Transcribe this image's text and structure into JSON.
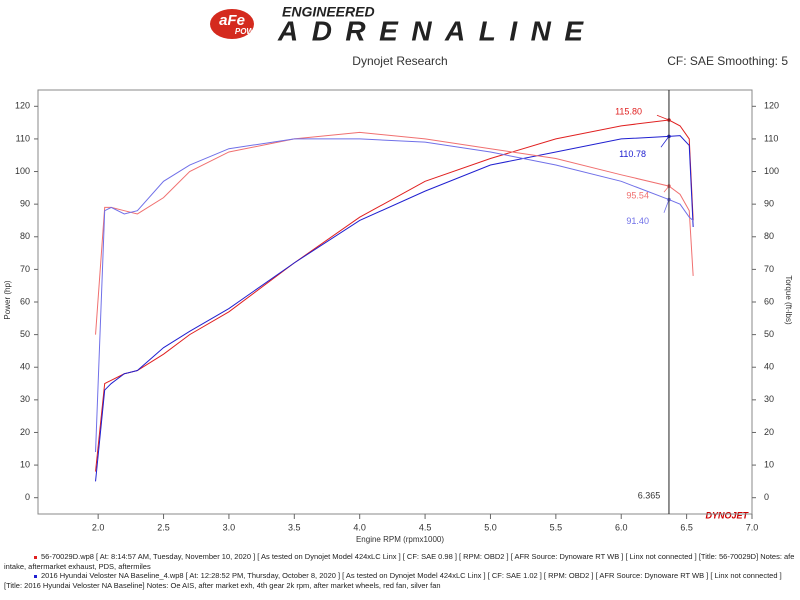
{
  "brand": {
    "logo": "aFe",
    "logo_sub": "POWER",
    "tagline": "ENGINEERED",
    "name": "ADRENALINE"
  },
  "chart_data": {
    "type": "line",
    "title": "Dynojet Research",
    "subtitle": "CF: SAE Smoothing: 5",
    "x_label": "Engine RPM (rpmx1000)",
    "y_label": "Power (hp)",
    "y2_label": "Torque (ft-lbs)",
    "watermark": "DYNOJET",
    "x": [
      1.98,
      2.05,
      2.1,
      2.2,
      2.3,
      2.5,
      2.7,
      3.0,
      3.5,
      4.0,
      4.5,
      5.0,
      5.5,
      6.0,
      6.365,
      6.45,
      6.52,
      6.55
    ],
    "series": [
      {
        "color": "#e02020",
        "values": [
          8,
          35,
          36,
          38,
          39,
          44,
          50,
          57,
          72,
          86,
          97,
          104,
          110,
          114,
          115.8,
          114,
          110,
          85
        ],
        "value_labels": [
          null,
          null,
          null,
          null,
          null,
          null,
          null,
          null,
          null,
          null,
          null,
          null,
          null,
          null,
          "115.80",
          null,
          null,
          null
        ]
      },
      {
        "color": "#2020d0",
        "values": [
          5,
          33,
          35,
          38,
          39,
          46,
          51,
          58,
          72,
          85,
          94,
          102,
          106,
          110,
          110.78,
          111,
          108,
          83
        ]
      },
      {
        "color": "#f07070",
        "axis": "y2",
        "values": [
          50,
          89,
          89,
          88,
          87,
          92,
          100,
          106,
          110,
          112,
          110,
          107,
          104,
          99,
          95.54,
          93,
          88,
          68
        ]
      },
      {
        "color": "#7070e8",
        "axis": "y2",
        "values": [
          14,
          88,
          89,
          87,
          88,
          97,
          102,
          107,
          110,
          110,
          109,
          106,
          102,
          97,
          91.4,
          90,
          86,
          85
        ],
        "value_labels": [
          null,
          null,
          null,
          null,
          null,
          null,
          null,
          null,
          null,
          null,
          null,
          null,
          null,
          null,
          "91.40",
          null,
          null,
          null
        ]
      }
    ],
    "cursor": 6.365,
    "xlim": [
      1.54,
      7.0
    ],
    "xticks": [
      {
        "value": 2,
        "label": "2.0"
      },
      2.5,
      {
        "value": 3,
        "label": "3.0"
      },
      3.5,
      {
        "value": 4,
        "label": "4.0"
      },
      4.5,
      {
        "value": 5,
        "label": "5.0"
      },
      5.5,
      {
        "value": 6,
        "label": "6.0"
      },
      6.5,
      {
        "value": 7,
        "label": "7.0"
      }
    ],
    "ylim": [
      -5,
      125
    ],
    "yticks": [
      0,
      10,
      20,
      30,
      40,
      50,
      60,
      70,
      80,
      90,
      100,
      110,
      120
    ],
    "y2lim": [
      -5,
      125
    ],
    "y2ticks": [
      0,
      10,
      20,
      30,
      40,
      50,
      60,
      70,
      80,
      90,
      100,
      110,
      120
    ]
  },
  "runs": [
    {
      "color": "#e02020",
      "text": "56-70029D.wp8 [ At: 8:14:57 AM, Tuesday, November 10, 2020 ] [ As tested on Dynojet Model 424xLC Linx ] [ CF: SAE 0.98 ] [ RPM: OBD2 ] [ AFR Source: Dynoware RT WB ] [ Linx not connected ] [Title: 56-70029D]  Notes: afe intake, aftermarket exhaust, PDS, aftermiles"
    },
    {
      "color": "#2020d0",
      "text": "2016 Hyundai Veloster NA Baseline_4.wp8 [ At: 12:28:52 PM, Thursday, October 8, 2020 ] [ As tested on Dynojet Model 424xLC Linx ] [ CF: SAE 1.02 ] [ RPM: OBD2 ] [ AFR Source: Dynoware RT WB ] [ Linx not connected ] [Title: 2016 Hyundai Veloster NA Baseline]  Notes: Oe AIS, after market exh, 4th gear 2k rpm, after market wheels, red fan, silver fan"
    }
  ]
}
